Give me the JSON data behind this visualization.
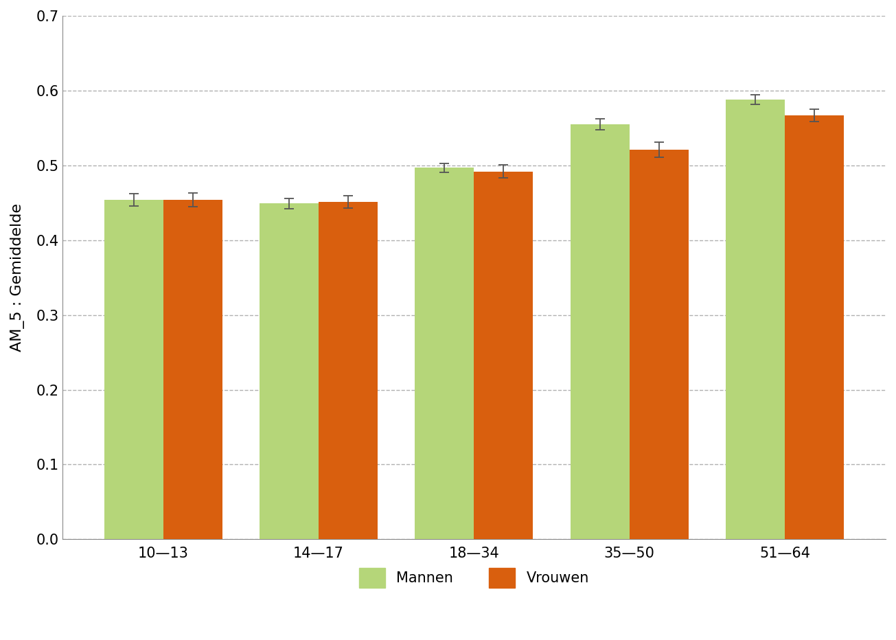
{
  "categories": [
    "10—13",
    "14—17",
    "18—34",
    "35—50",
    "51—64"
  ],
  "mannen_values": [
    0.454,
    0.449,
    0.497,
    0.555,
    0.588
  ],
  "vrouwen_values": [
    0.454,
    0.451,
    0.492,
    0.521,
    0.567
  ],
  "mannen_errors": [
    0.008,
    0.007,
    0.006,
    0.007,
    0.006
  ],
  "vrouwen_errors": [
    0.009,
    0.008,
    0.009,
    0.01,
    0.008
  ],
  "mannen_color": "#b5d679",
  "vrouwen_color": "#d95f0e",
  "bar_width": 0.38,
  "ylim": [
    0.0,
    0.7
  ],
  "yticks": [
    0.0,
    0.1,
    0.2,
    0.3,
    0.4,
    0.5,
    0.6,
    0.7
  ],
  "ylabel": "AM_5 : Gemiddelde",
  "legend_mannen": "Mannen",
  "legend_vrouwen": "Vrouwen",
  "background_color": "#ffffff",
  "grid_color": "#b0b0b0",
  "error_color": "#555555",
  "ylabel_fontsize": 16,
  "tick_fontsize": 15,
  "legend_fontsize": 15,
  "left_spine_color": "#888888",
  "bottom_spine_color": "#888888"
}
